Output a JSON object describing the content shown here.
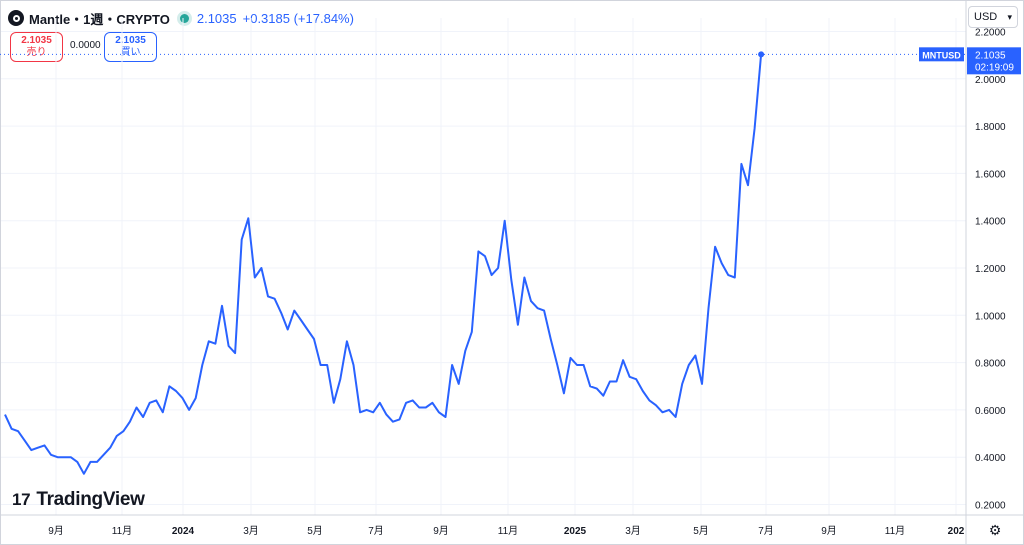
{
  "header": {
    "symbol": "Mantle・1週・CRYPTO",
    "price": "2.1035",
    "change": "+0.3185 (+17.84%)"
  },
  "trade": {
    "sell_price": "2.1035",
    "sell_label": "売り",
    "spread": "0.0000",
    "buy_price": "2.1035",
    "buy_label": "買い"
  },
  "currency": "USD",
  "brand": "TradingView",
  "chart_data": {
    "type": "line",
    "series": [
      {
        "name": "MNTUSD",
        "color": "#2962ff",
        "values": [
          0.58,
          0.52,
          0.51,
          0.47,
          0.43,
          0.44,
          0.45,
          0.41,
          0.4,
          0.4,
          0.4,
          0.38,
          0.33,
          0.38,
          0.38,
          0.41,
          0.44,
          0.49,
          0.51,
          0.55,
          0.61,
          0.57,
          0.63,
          0.64,
          0.59,
          0.7,
          0.68,
          0.65,
          0.6,
          0.65,
          0.79,
          0.89,
          0.88,
          1.04,
          0.87,
          0.84,
          1.32,
          1.41,
          1.16,
          1.2,
          1.08,
          1.07,
          1.01,
          0.94,
          1.02,
          0.98,
          0.94,
          0.9,
          0.79,
          0.79,
          0.63,
          0.73,
          0.89,
          0.79,
          0.59,
          0.6,
          0.59,
          0.63,
          0.58,
          0.55,
          0.56,
          0.63,
          0.64,
          0.61,
          0.61,
          0.63,
          0.59,
          0.57,
          0.79,
          0.71,
          0.85,
          0.93,
          1.27,
          1.25,
          1.17,
          1.2,
          1.4,
          1.15,
          0.96,
          1.16,
          1.06,
          1.03,
          1.02,
          0.9,
          0.79,
          0.67,
          0.82,
          0.79,
          0.79,
          0.7,
          0.69,
          0.66,
          0.72,
          0.72,
          0.81,
          0.74,
          0.73,
          0.68,
          0.64,
          0.62,
          0.59,
          0.6,
          0.57,
          0.71,
          0.79,
          0.83,
          0.71,
          1.03,
          1.29,
          1.22,
          1.17,
          1.16,
          1.64,
          1.55,
          1.79,
          2.1035
        ]
      }
    ],
    "x_tick_labels": [
      "9月",
      "11月",
      "2024",
      "3月",
      "5月",
      "7月",
      "9月",
      "11月",
      "2025",
      "3月",
      "5月",
      "7月",
      "9月",
      "11月",
      "202"
    ],
    "y_tick_labels": [
      "0.2000",
      "0.4000",
      "0.6000",
      "0.8000",
      "1.0000",
      "1.2000",
      "1.4000",
      "1.6000",
      "1.8000",
      "2.0000",
      "2.2000"
    ],
    "ylim": [
      0.2,
      2.2
    ],
    "price_label": {
      "symbol": "MNTUSD",
      "value": "2.1035",
      "countdown": "02:19:09"
    }
  }
}
